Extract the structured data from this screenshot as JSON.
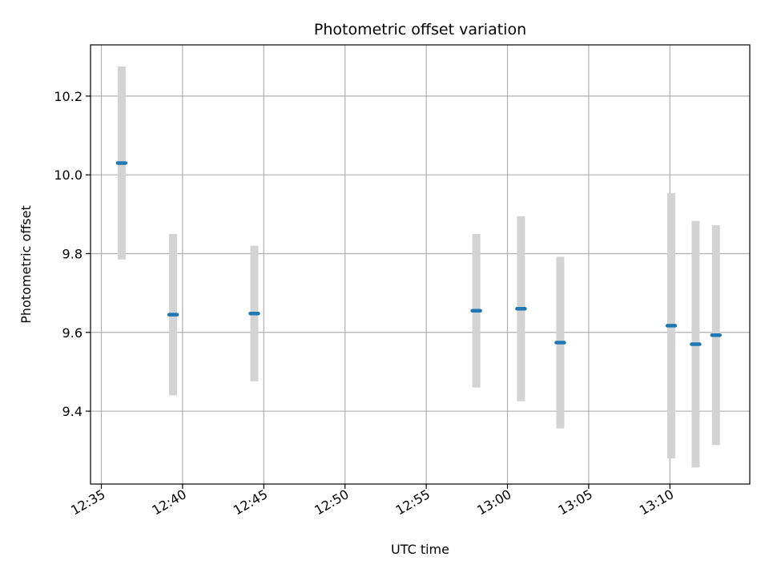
{
  "chart_data": {
    "type": "scatter",
    "title": "Photometric offset variation",
    "xlabel": "UTC time",
    "ylabel": "Photometric offset",
    "xlim": [
      "12:34:20",
      "13:14:55"
    ],
    "ylim": [
      9.215,
      10.33
    ],
    "grid": true,
    "x_ticks": [
      "12:35",
      "12:40",
      "12:45",
      "12:50",
      "12:55",
      "13:00",
      "13:05",
      "13:10"
    ],
    "y_ticks": [
      "9.4",
      "9.6",
      "9.8",
      "10.0",
      "10.2"
    ],
    "series": [
      {
        "points": [
          {
            "x": "12:36:15",
            "y": 10.03,
            "yerr": 0.245
          },
          {
            "x": "12:39:25",
            "y": 9.645,
            "yerr": 0.205
          },
          {
            "x": "12:44:25",
            "y": 9.648,
            "yerr": 0.172
          },
          {
            "x": "12:58:05",
            "y": 9.655,
            "yerr": 0.195
          },
          {
            "x": "13:00:50",
            "y": 9.66,
            "yerr": 0.235
          },
          {
            "x": "13:03:15",
            "y": 9.574,
            "yerr": 0.218
          },
          {
            "x": "13:10:05",
            "y": 9.617,
            "yerr": 0.337
          },
          {
            "x": "13:11:35",
            "y": 9.57,
            "yerr": 0.313
          },
          {
            "x": "13:12:50",
            "y": 9.593,
            "yerr": 0.279
          }
        ]
      }
    ],
    "colors": {
      "marker": "#1f77b4",
      "errorbar": "#d3d3d3",
      "grid": "#b0b0b0",
      "axes": "#000000"
    }
  }
}
